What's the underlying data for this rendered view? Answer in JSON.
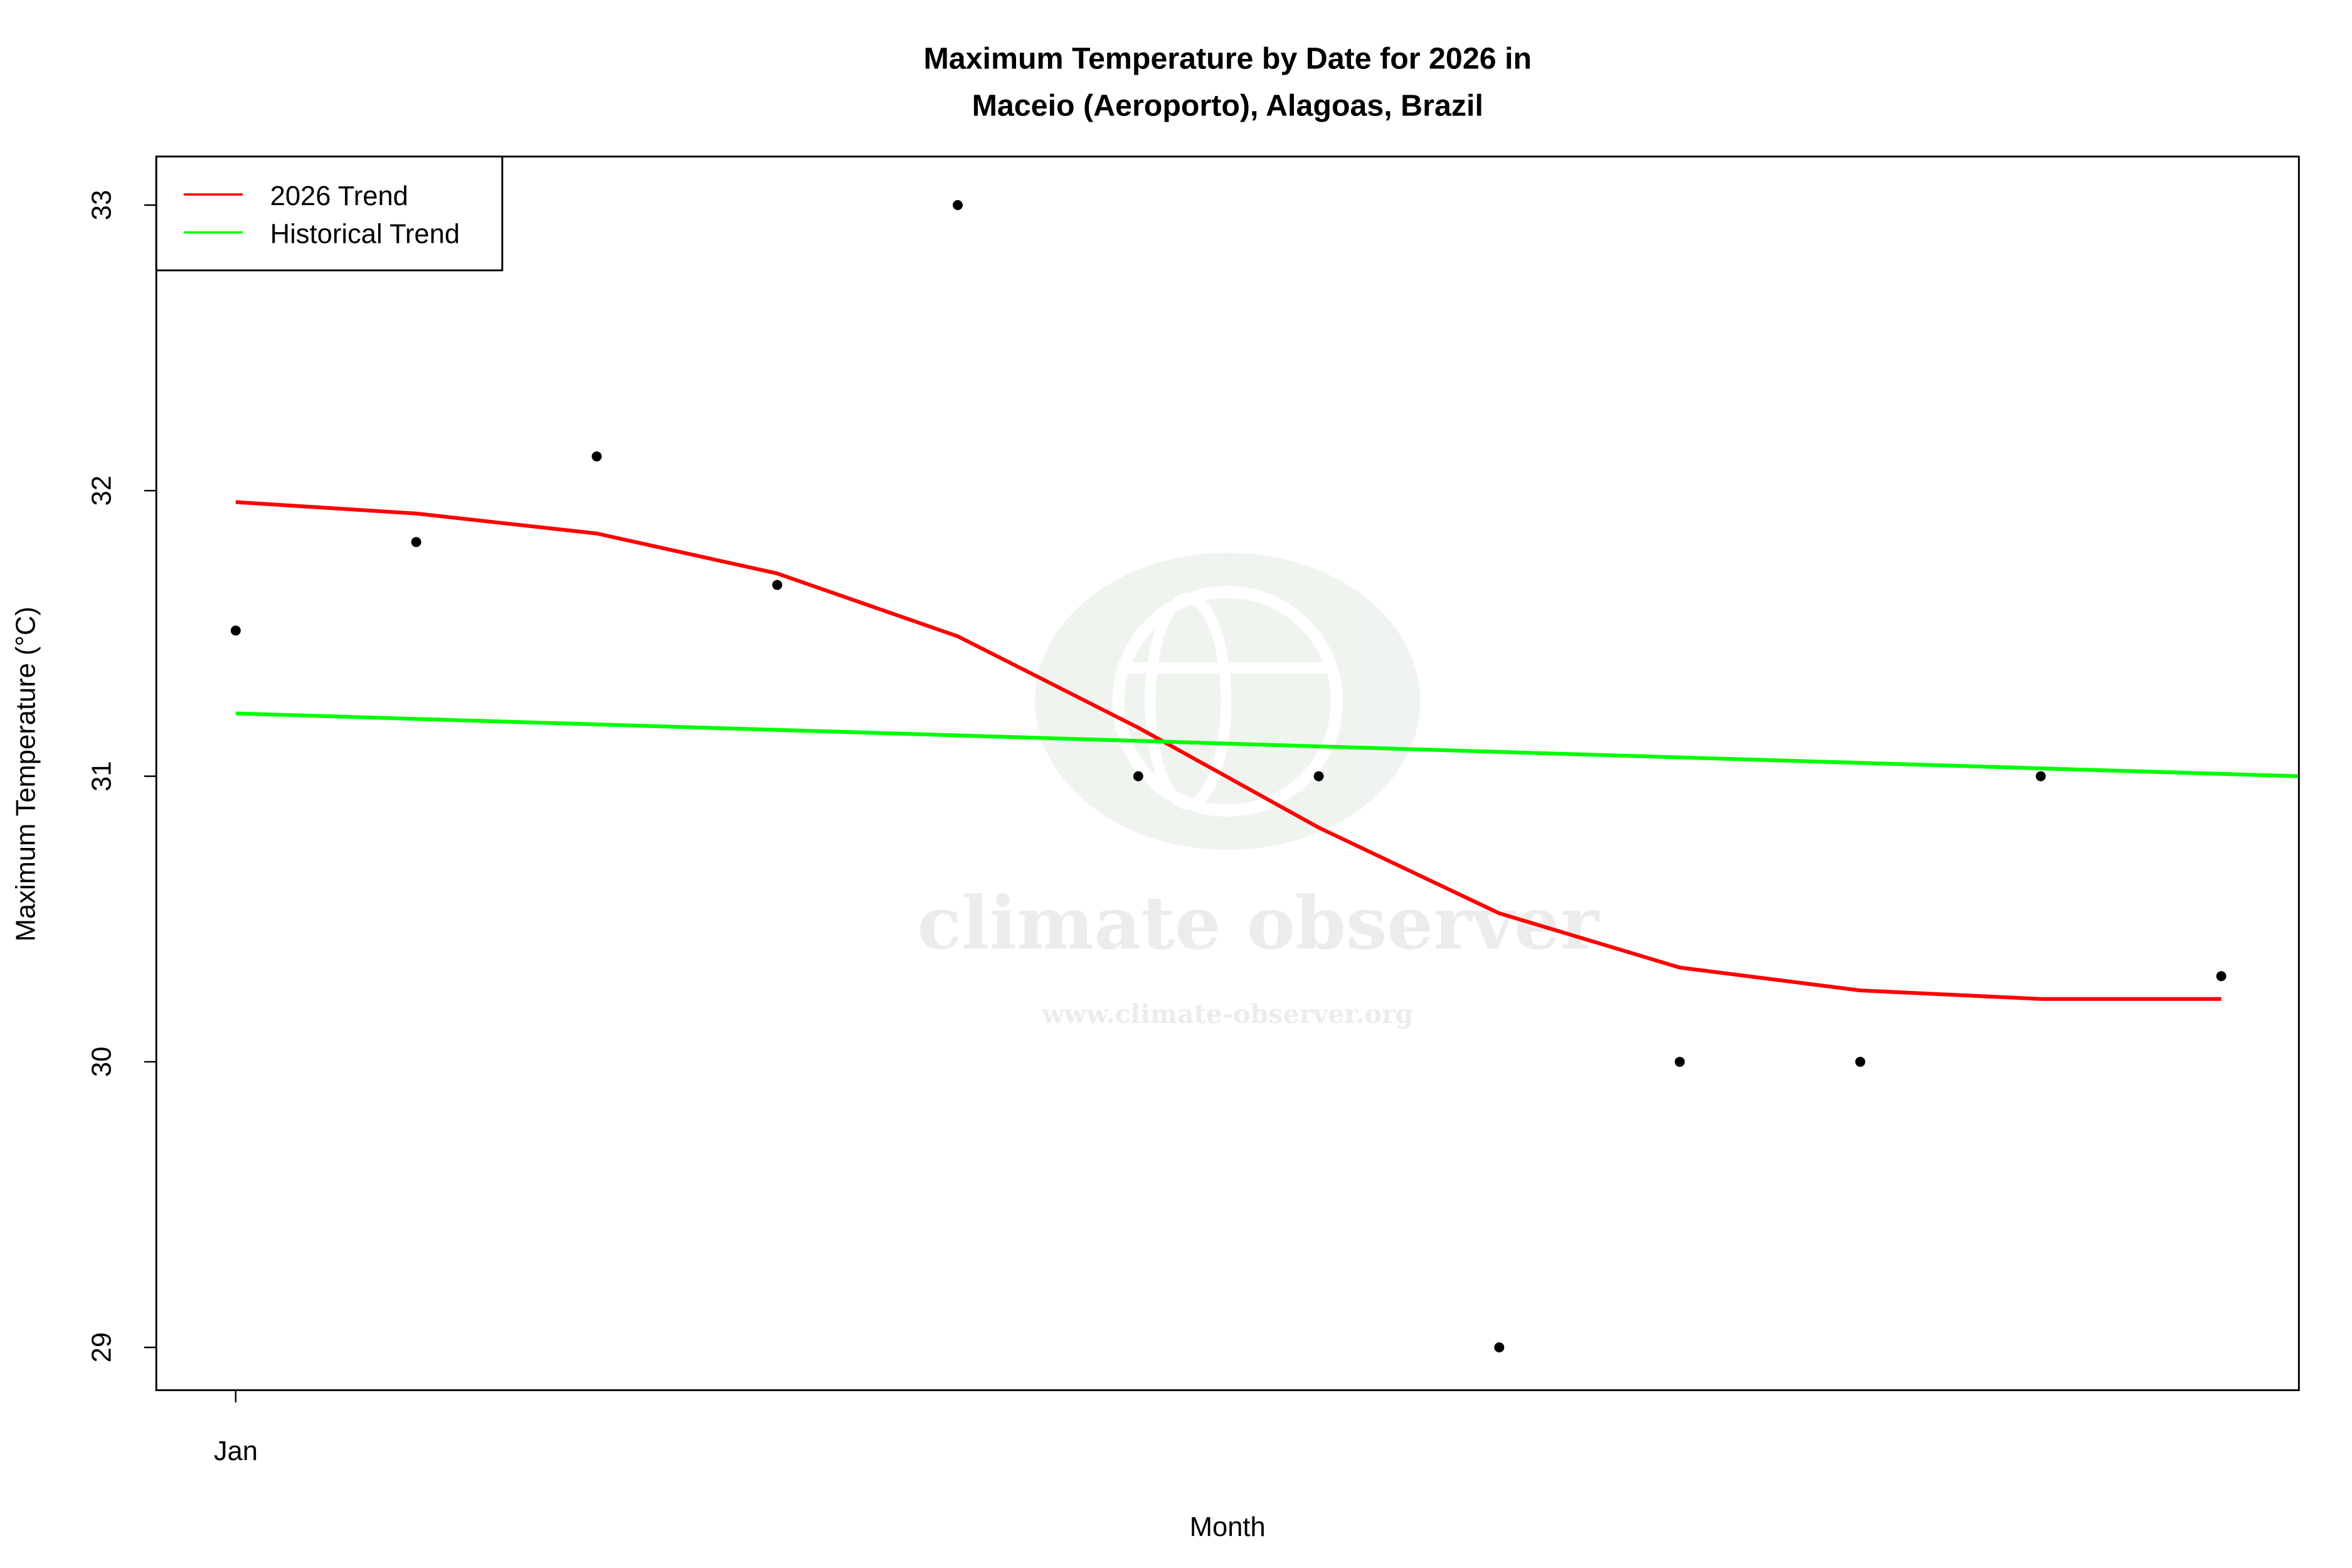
{
  "chart_data": {
    "type": "scatter",
    "title_line1": "Maximum Temperature by Date for 2026 in",
    "title_line2": "Maceio (Aeroporto), Alagoas, Brazil",
    "xlabel": "Month",
    "ylabel": "Maximum Temperature (°C)",
    "x_tick_labels": [
      {
        "day": 1,
        "label": "Jan"
      }
    ],
    "y_ticks": [
      29,
      30,
      31,
      32,
      33
    ],
    "xlim": [
      0.56,
      12.43
    ],
    "ylim": [
      28.85,
      33.17
    ],
    "grid": false,
    "legend_position": "top-left",
    "points": {
      "color": "#000000",
      "x": [
        "2026-01-01",
        "2026-01-02",
        "2026-01-03",
        "2026-01-04",
        "2026-01-05",
        "2026-01-06",
        "2026-01-07",
        "2026-01-08",
        "2026-01-09",
        "2026-01-10",
        "2026-01-11",
        "2026-01-12"
      ],
      "y": [
        31.51,
        31.82,
        32.12,
        31.67,
        33.0,
        31.0,
        31.0,
        29.0,
        30.0,
        30.0,
        31.0,
        30.3
      ]
    },
    "series": [
      {
        "name": "2026 Trend",
        "color": "#ff0000",
        "y": [
          31.96,
          31.92,
          31.85,
          31.71,
          31.49,
          31.17,
          30.82,
          30.52,
          30.33,
          30.25,
          30.22,
          30.22
        ]
      },
      {
        "name": "Historical Trend",
        "color": "#00ff00",
        "start": {
          "day": 1,
          "y": 31.22
        },
        "end": {
          "day": 12.43,
          "y": 31.0
        }
      }
    ]
  },
  "watermark": {
    "name": "climate observer",
    "url": "www.climate-observer.org"
  }
}
